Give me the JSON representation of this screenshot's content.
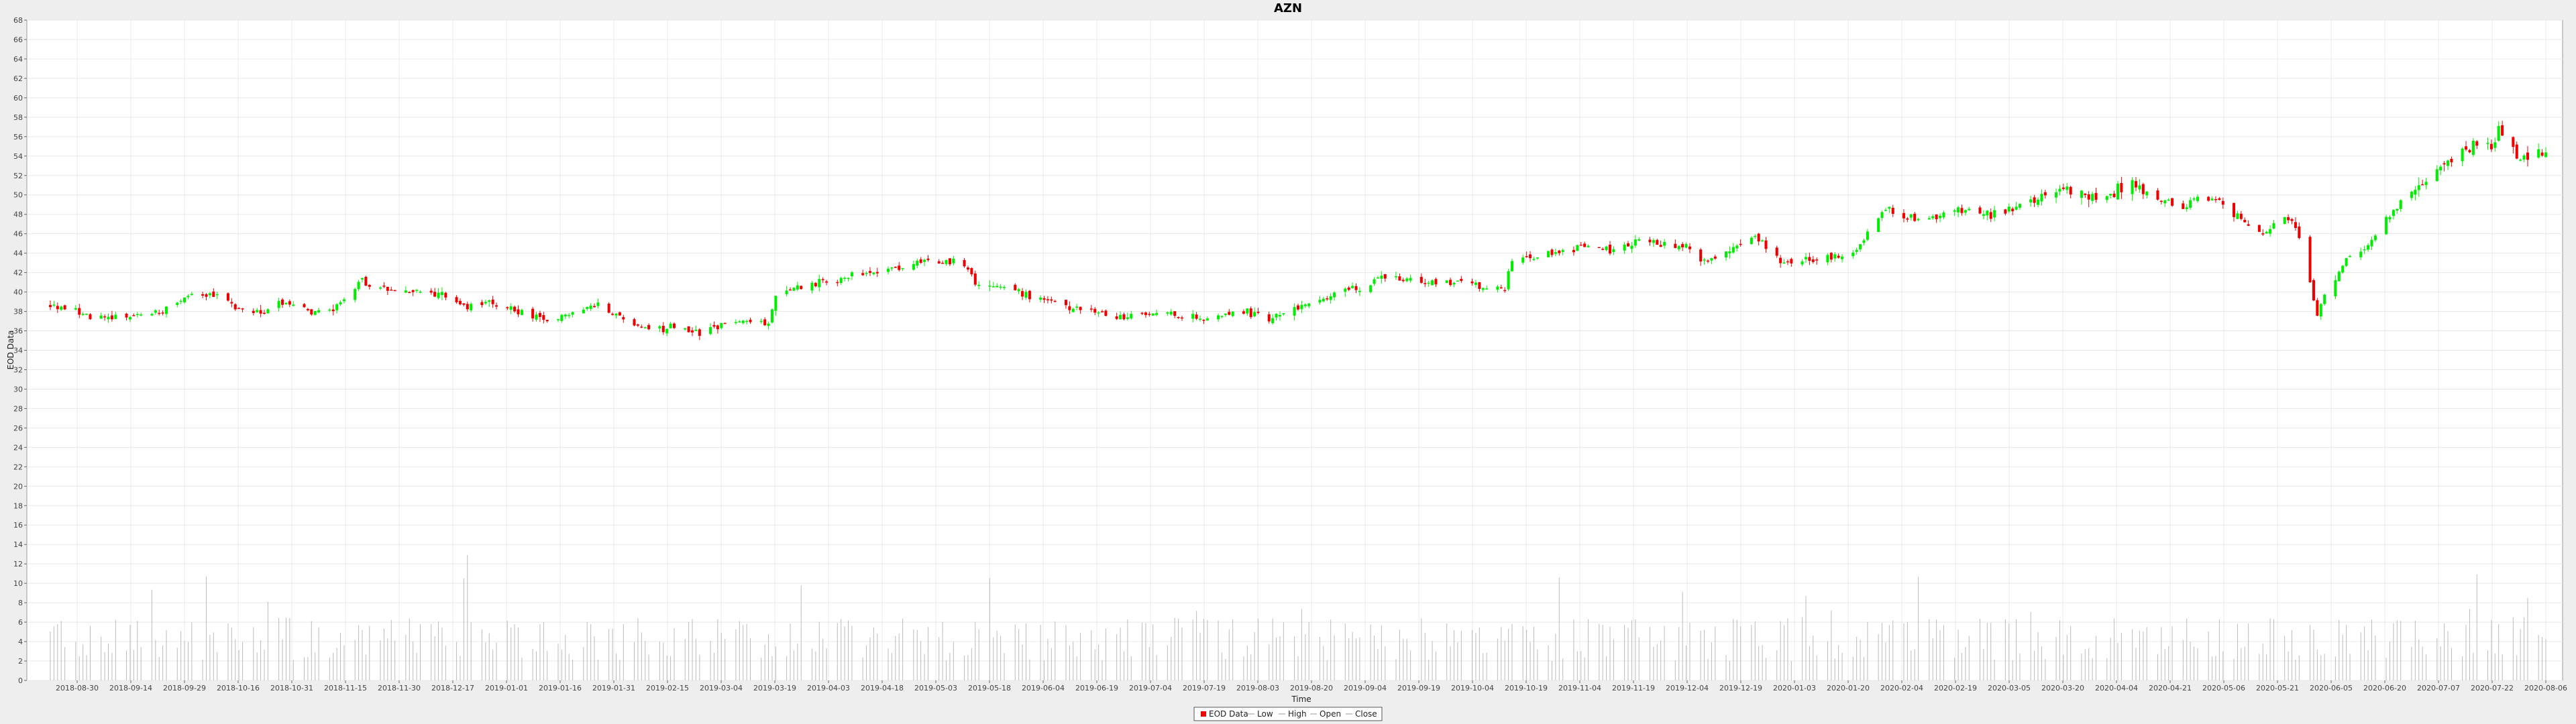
{
  "chart_data": {
    "type": "candlestick",
    "title": "AZN",
    "xlabel": "Time",
    "ylabel": "EOD Data",
    "ylim": [
      0,
      68
    ],
    "yticks": [
      0,
      2,
      4,
      6,
      8,
      10,
      12,
      14,
      16,
      18,
      20,
      22,
      24,
      26,
      28,
      30,
      32,
      34,
      36,
      38,
      40,
      42,
      44,
      46,
      48,
      50,
      52,
      54,
      56,
      58,
      60,
      62,
      64,
      66,
      68
    ],
    "x_start": "2018-09-24",
    "x_end": "2020-08-12",
    "x_ticks": [
      "2018-08-30",
      "2018-09-14",
      "2018-09-29",
      "2018-10-16",
      "2018-10-31",
      "2018-11-15",
      "2018-11-30",
      "2018-12-17",
      "2019-01-01",
      "2019-01-16",
      "2019-01-31",
      "2019-02-15",
      "2019-03-04",
      "2019-03-19",
      "2019-04-03",
      "2019-04-18",
      "2019-05-03",
      "2019-05-18",
      "2019-06-04",
      "2019-06-19",
      "2019-07-04",
      "2019-07-19",
      "2019-08-03",
      "2019-08-20",
      "2019-09-04",
      "2019-09-19",
      "2019-10-04",
      "2019-10-19",
      "2019-11-04",
      "2019-11-19",
      "2019-12-04",
      "2019-12-19",
      "2020-01-03",
      "2020-01-20",
      "2020-02-04",
      "2020-02-19",
      "2020-03-05",
      "2020-03-20",
      "2020-04-04",
      "2020-04-21",
      "2020-05-06",
      "2020-05-21",
      "2020-06-05",
      "2020-06-20",
      "2020-07-07",
      "2020-07-22",
      "2020-08-06"
    ],
    "grid": true,
    "legend_placement": "bottom-center",
    "legend": [
      "EOD Data",
      "Low",
      "High",
      "Open",
      "Close"
    ],
    "colors": {
      "up": "#00ee00",
      "down": "#ee0000",
      "volume": "#bbbbbb",
      "plot_bg": "#ffffff",
      "grid": "#e8e8e8",
      "page_bg": "#eeeeee"
    },
    "close_anchors": [
      [
        "2018-09-24",
        38.6
      ],
      [
        "2018-10-01",
        38.0
      ],
      [
        "2018-10-05",
        37.3
      ],
      [
        "2018-10-15",
        37.4
      ],
      [
        "2018-10-25",
        38.0
      ],
      [
        "2018-11-01",
        39.5
      ],
      [
        "2018-11-08",
        39.8
      ],
      [
        "2018-11-15",
        38.2
      ],
      [
        "2018-11-22",
        37.8
      ],
      [
        "2018-11-28",
        39.2
      ],
      [
        "2018-12-05",
        37.8
      ],
      [
        "2018-12-12",
        38.5
      ],
      [
        "2018-12-19",
        41.0
      ],
      [
        "2018-12-26",
        40.3
      ],
      [
        "2019-01-04",
        40.0
      ],
      [
        "2019-01-10",
        39.8
      ],
      [
        "2019-01-17",
        38.5
      ],
      [
        "2019-01-24",
        39.0
      ],
      [
        "2019-02-01",
        37.8
      ],
      [
        "2019-02-08",
        37.0
      ],
      [
        "2019-02-15",
        37.9
      ],
      [
        "2019-02-22",
        38.8
      ],
      [
        "2019-03-01",
        37.2
      ],
      [
        "2019-03-08",
        35.9
      ],
      [
        "2019-03-15",
        36.5
      ],
      [
        "2019-03-22",
        35.8
      ],
      [
        "2019-03-29",
        36.8
      ],
      [
        "2019-04-05",
        37.0
      ],
      [
        "2019-04-10",
        36.7
      ],
      [
        "2019-04-12",
        39.6
      ],
      [
        "2019-04-19",
        40.6
      ],
      [
        "2019-04-30",
        41.5
      ],
      [
        "2019-05-10",
        42.3
      ],
      [
        "2019-05-20",
        42.8
      ],
      [
        "2019-05-28",
        43.2
      ],
      [
        "2019-06-03",
        43.0
      ],
      [
        "2019-06-06",
        41.0
      ],
      [
        "2019-06-15",
        40.5
      ],
      [
        "2019-06-25",
        39.0
      ],
      [
        "2019-07-05",
        38.3
      ],
      [
        "2019-07-15",
        37.4
      ],
      [
        "2019-07-25",
        38.0
      ],
      [
        "2019-08-04",
        37.3
      ],
      [
        "2019-08-12",
        37.5
      ],
      [
        "2019-08-20",
        38.0
      ],
      [
        "2019-08-25",
        37.2
      ],
      [
        "2019-09-01",
        38.2
      ],
      [
        "2019-09-10",
        39.5
      ],
      [
        "2019-09-20",
        40.5
      ],
      [
        "2019-09-27",
        41.5
      ],
      [
        "2019-10-05",
        41.2
      ],
      [
        "2019-10-15",
        41.0
      ],
      [
        "2019-10-25",
        40.5
      ],
      [
        "2019-10-30",
        40.5
      ],
      [
        "2019-11-01",
        43.0
      ],
      [
        "2019-11-10",
        43.8
      ],
      [
        "2019-11-20",
        44.5
      ],
      [
        "2019-11-28",
        44.3
      ],
      [
        "2019-12-05",
        45.2
      ],
      [
        "2019-12-12",
        45.0
      ],
      [
        "2019-12-20",
        44.8
      ],
      [
        "2019-12-24",
        43.0
      ],
      [
        "2020-01-02",
        45.0
      ],
      [
        "2020-01-06",
        45.8
      ],
      [
        "2020-01-10",
        44.8
      ],
      [
        "2020-01-14",
        43.0
      ],
      [
        "2020-01-25",
        43.5
      ],
      [
        "2020-02-04",
        44.0
      ],
      [
        "2020-02-08",
        46.8
      ],
      [
        "2020-02-12",
        48.5
      ],
      [
        "2020-02-20",
        47.5
      ],
      [
        "2020-02-27",
        47.8
      ],
      [
        "2020-03-05",
        48.5
      ],
      [
        "2020-03-12",
        48.0
      ],
      [
        "2020-03-18",
        48.5
      ],
      [
        "2020-03-25",
        49.5
      ],
      [
        "2020-03-31",
        50.5
      ],
      [
        "2020-04-08",
        50.2
      ],
      [
        "2020-04-13",
        50.0
      ],
      [
        "2020-04-17",
        50.8
      ],
      [
        "2020-04-22",
        51.0
      ],
      [
        "2020-04-25",
        49.8
      ],
      [
        "2020-04-30",
        49.5
      ],
      [
        "2020-05-04",
        48.5
      ],
      [
        "2020-05-08",
        49.8
      ],
      [
        "2020-05-12",
        49.5
      ],
      [
        "2020-05-15",
        49.0
      ],
      [
        "2020-05-20",
        47.5
      ],
      [
        "2020-05-27",
        46.0
      ],
      [
        "2020-06-01",
        48.0
      ],
      [
        "2020-06-03",
        47.0
      ],
      [
        "2020-06-05",
        45.5
      ],
      [
        "2020-06-08",
        41.0
      ],
      [
        "2020-06-10",
        37.5
      ],
      [
        "2020-06-12",
        39.5
      ],
      [
        "2020-06-15",
        41.5
      ],
      [
        "2020-06-18",
        43.5
      ],
      [
        "2020-06-22",
        44.0
      ],
      [
        "2020-06-26",
        46.0
      ],
      [
        "2020-07-01",
        48.5
      ],
      [
        "2020-07-06",
        50.5
      ],
      [
        "2020-07-10",
        51.0
      ],
      [
        "2020-07-15",
        53.0
      ],
      [
        "2020-07-20",
        54.5
      ],
      [
        "2020-07-25",
        55.5
      ],
      [
        "2020-07-28",
        55.0
      ],
      [
        "2020-07-30",
        56.5
      ],
      [
        "2020-08-01",
        55.5
      ],
      [
        "2020-08-04",
        54.0
      ],
      [
        "2020-08-07",
        53.5
      ],
      [
        "2020-08-12",
        54.5
      ]
    ]
  }
}
